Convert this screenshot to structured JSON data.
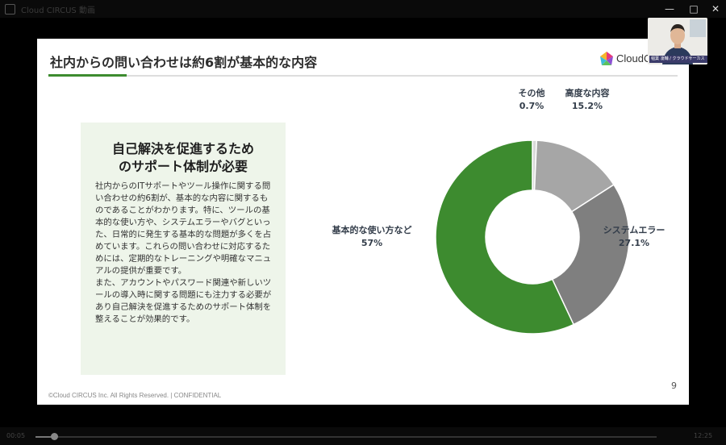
{
  "window": {
    "title": "Cloud CIRCUS 動画",
    "minimize": "—",
    "maximize": "□",
    "close": "✕"
  },
  "slide": {
    "title": "社内からの問い合わせは約6割が基本的な内容",
    "logo_text": "CloudCIRCUS",
    "panel": {
      "heading_line1": "自己解決を促進するため",
      "heading_line2": "のサポート体制が必要",
      "body": "社内からのITサポートやツール操作に関する問い合わせの約6割が、基本的な内容に関するものであることがわかります。特に、ツールの基本的な使い方や、システムエラーやバグといった、日常的に発生する基本的な問題が多くを占めています。これらの問い合わせに対応するためには、定期的なトレーニングや明確なマニュアルの提供が重要です。\nまた、アカウントやパスワード関連や新しいツールの導入時に関する問題にも注力する必要があり自己解決を促進するためのサポート体制を整えることが効果的です。"
    },
    "page_number": "9",
    "footer": "©Cloud CIRCUS Inc. All Rights Reserved. | CONFIDENTIAL"
  },
  "chart_data": {
    "type": "pie",
    "donut": true,
    "slices": [
      {
        "label": "その他",
        "value": 0.7,
        "display": "0.7%",
        "color": "#d9d9d9"
      },
      {
        "label": "高度な内容",
        "value": 15.2,
        "display": "15.2%",
        "color": "#a6a6a6"
      },
      {
        "label": "システムエラー",
        "value": 27.1,
        "display": "27.1%",
        "color": "#7f7f7f"
      },
      {
        "label": "基本的な使い方など",
        "value": 57,
        "display": "57%",
        "color": "#3d8b2f"
      }
    ]
  },
  "webcam": {
    "name_tag": "稲葉 凌輔 / クラウドサーカス"
  },
  "player": {
    "time_left": "00:05",
    "time_right": "12:25",
    "progress": 0.03
  }
}
